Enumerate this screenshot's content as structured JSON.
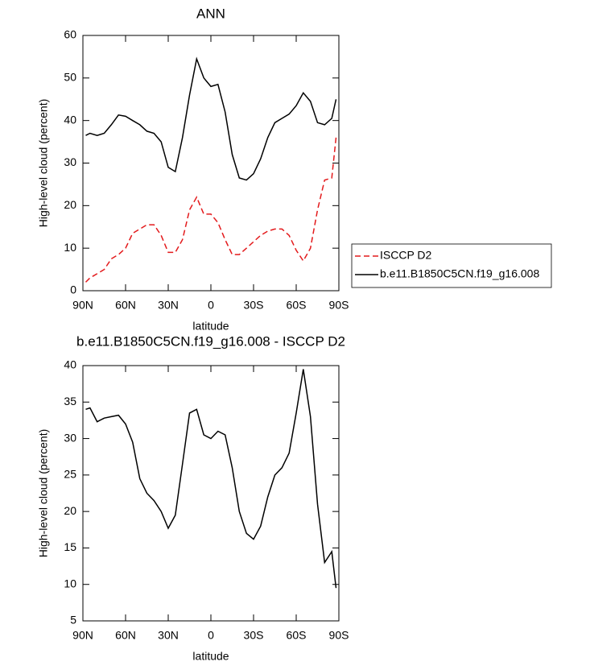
{
  "chart_data": [
    {
      "type": "line",
      "title": "ANN",
      "xlabel": "latitude",
      "ylabel": "High-level cloud (percent)",
      "x": [
        88,
        85,
        80,
        75,
        70,
        65,
        60,
        55,
        50,
        45,
        40,
        35,
        30,
        25,
        20,
        15,
        10,
        5,
        0,
        -5,
        -10,
        -15,
        -20,
        -25,
        -30,
        -35,
        -40,
        -45,
        -50,
        -55,
        -60,
        -65,
        -70,
        -75,
        -80,
        -85,
        -88
      ],
      "series": [
        {
          "name": "ISCCP D2",
          "color": "#e31a1c",
          "dash": true,
          "values": [
            2,
            3,
            4,
            5,
            7.5,
            8.5,
            10,
            13.5,
            14.5,
            15.5,
            15.5,
            13,
            9,
            9,
            12,
            19,
            22,
            18,
            18,
            16,
            12,
            8.5,
            8.5,
            10,
            11.5,
            13,
            14,
            14.5,
            14.5,
            13,
            9.5,
            7,
            10,
            19,
            26,
            26.5,
            36
          ]
        },
        {
          "name": "b.e11.B1850C5CN.f19_g16.008",
          "color": "#000000",
          "dash": false,
          "values": [
            36.5,
            37,
            36.5,
            37,
            39,
            41.3,
            41,
            40,
            39,
            37.5,
            37,
            35,
            29,
            28,
            36,
            46,
            54.5,
            50,
            48,
            48.5,
            42,
            32,
            26.5,
            26,
            27.5,
            31,
            36,
            39.5,
            40.5,
            41.5,
            43.5,
            46.5,
            44.5,
            39.5,
            39,
            40.5,
            45
          ]
        }
      ],
      "xlim": [
        90,
        -90
      ],
      "xticks": [
        {
          "value": 90,
          "label": "90N"
        },
        {
          "value": 60,
          "label": "60N"
        },
        {
          "value": 30,
          "label": "30N"
        },
        0,
        {
          "value": -30,
          "label": "30S"
        },
        {
          "value": -60,
          "label": "60S"
        },
        {
          "value": -90,
          "label": "90S"
        }
      ],
      "ylim": [
        0,
        60
      ],
      "yticks": [
        0,
        10,
        20,
        30,
        40,
        50,
        60
      ],
      "legend": "outside right"
    },
    {
      "type": "line",
      "title": "b.e11.B1850C5CN.f19_g16.008 - ISCCP D2",
      "xlabel": "latitude",
      "ylabel": "High-level cloud (percent)",
      "x": [
        88,
        85,
        80,
        75,
        70,
        65,
        60,
        55,
        50,
        45,
        40,
        35,
        30,
        25,
        20,
        15,
        10,
        5,
        0,
        -5,
        -10,
        -15,
        -20,
        -25,
        -30,
        -35,
        -40,
        -45,
        -50,
        -55,
        -60,
        -65,
        -70,
        -75,
        -80,
        -85,
        -88
      ],
      "series": [
        {
          "color": "#000000",
          "dash": false,
          "values": [
            34,
            34.2,
            32.3,
            32.8,
            33,
            33.2,
            32,
            29.5,
            24.5,
            22.5,
            21.5,
            20,
            17.7,
            19.5,
            26.5,
            33.5,
            34,
            30.5,
            30,
            31,
            30.5,
            26,
            20,
            17,
            16.2,
            18,
            22,
            25,
            26,
            28,
            33.5,
            39.5,
            33,
            21,
            13,
            14.5,
            9.5
          ]
        }
      ],
      "xlim": [
        90,
        -90
      ],
      "xticks": [
        {
          "value": 90,
          "label": "90N"
        },
        {
          "value": 60,
          "label": "60N"
        },
        {
          "value": 30,
          "label": "30N"
        },
        0,
        {
          "value": -30,
          "label": "30S"
        },
        {
          "value": -60,
          "label": "60S"
        },
        {
          "value": -90,
          "label": "90S"
        }
      ],
      "ylim": [
        5,
        40
      ],
      "yticks": [
        5,
        10,
        15,
        20,
        25,
        30,
        35,
        40
      ]
    }
  ]
}
